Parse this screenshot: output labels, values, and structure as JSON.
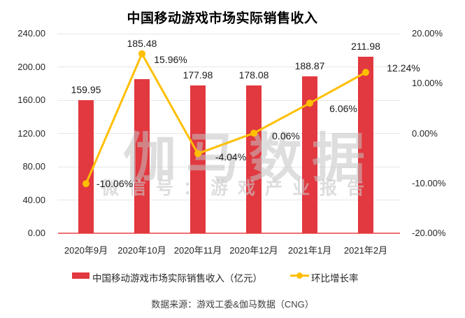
{
  "title": "中国移动游戏市场实际销售收入",
  "watermark": {
    "line1": "伽马数据",
    "line2": "微信号：游戏产业报告"
  },
  "footer": "数据来源：游戏工委&伽马数据（CNG）",
  "colors": {
    "bar": "#E2383F",
    "line": "#FFBF00",
    "baseline": "#EE6F72",
    "grid": "#CFCFCF"
  },
  "legend": {
    "revenue_label": "中国移动游戏市场实际销售收入（亿元）",
    "growth_label": "环比增长率"
  },
  "chart_data": {
    "type": "combo",
    "categories": [
      "2020年9月",
      "2020年10月",
      "2020年11月",
      "2020年12月",
      "2021年1月",
      "2021年2月"
    ],
    "series": [
      {
        "name": "中国移动游戏市场实际销售收入（亿元）",
        "type": "bar",
        "values": [
          159.95,
          185.48,
          177.98,
          178.08,
          188.87,
          211.98
        ]
      },
      {
        "name": "环比增长率",
        "type": "line",
        "unit": "%",
        "values": [
          -10.06,
          15.96,
          -4.04,
          0.06,
          6.06,
          12.24
        ]
      }
    ],
    "bar_labels": [
      "159.95",
      "185.48",
      "177.98",
      "178.08",
      "188.87",
      "211.98"
    ],
    "line_labels": [
      "-10.06%",
      "15.96%",
      "-4.04%",
      "0.06%",
      "6.06%",
      "12.24%"
    ],
    "left_axis": {
      "ticks": [
        "240.00",
        "200.00",
        "160.00",
        "120.00",
        "80.00",
        "40.00",
        "0.00"
      ],
      "min": 0,
      "max": 240
    },
    "right_axis": {
      "ticks": [
        "20.00%",
        "10.00%",
        "0.00%",
        "-10.00%",
        "-20.00%"
      ],
      "min": -20,
      "max": 20
    },
    "grid": "dotted-horizontal",
    "legend_position": "bottom"
  }
}
